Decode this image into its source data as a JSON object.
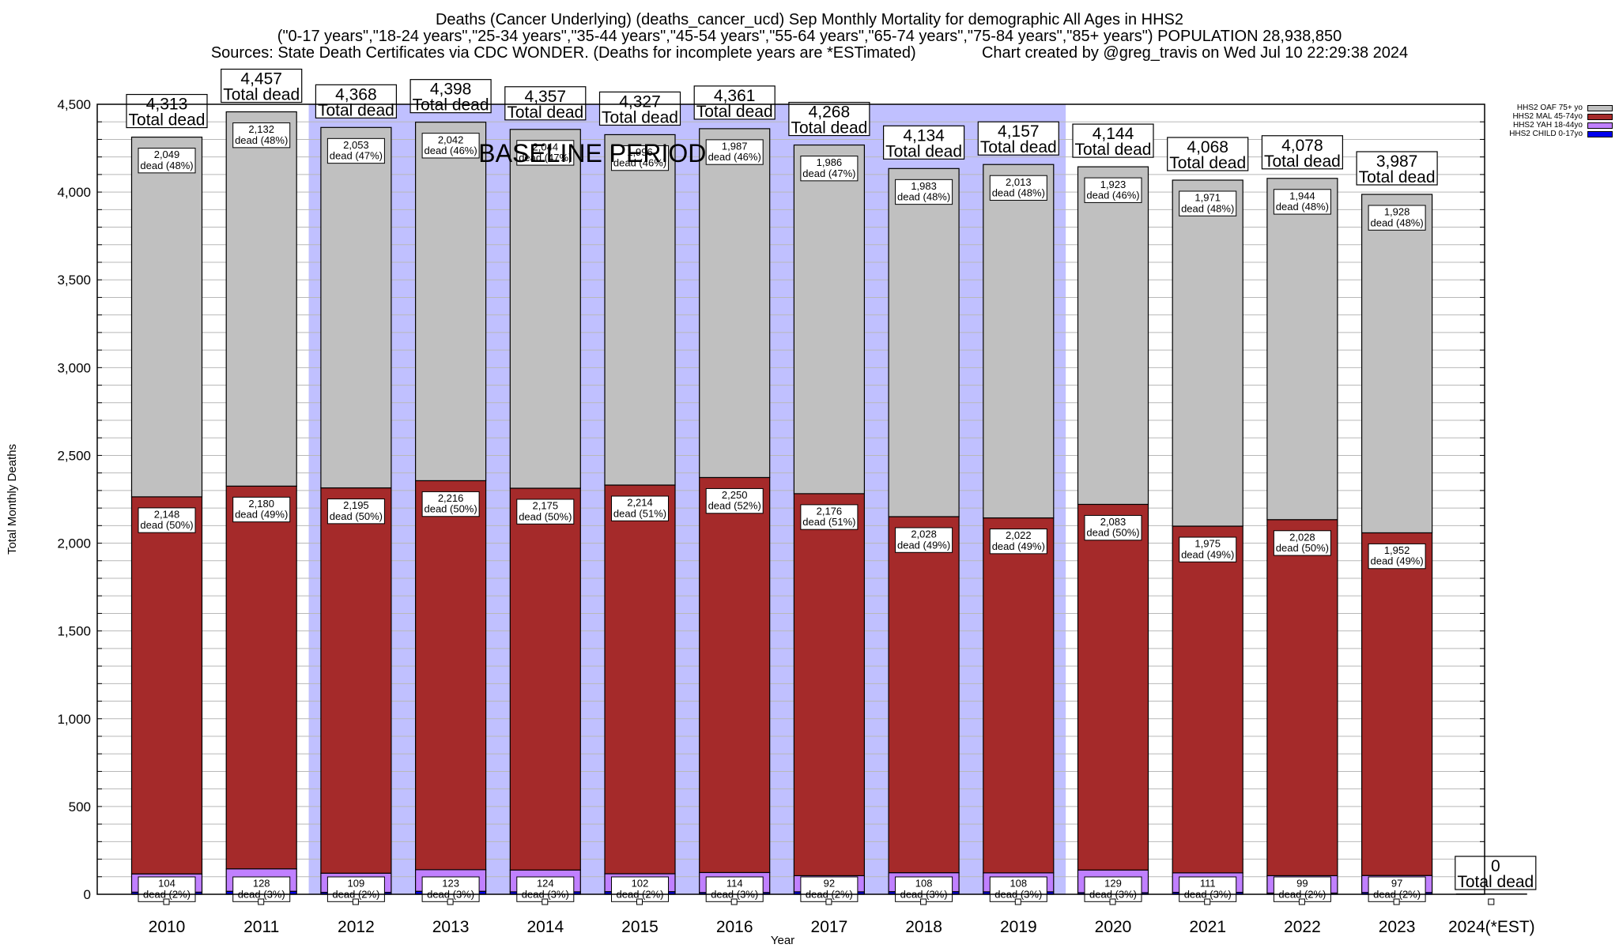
{
  "header": {
    "title_line1": "Deaths (Cancer Underlying) (deaths_cancer_ucd) Sep Monthly Mortality for demographic All Ages in HHS2",
    "title_line2": "(\"0-17 years\",\"18-24 years\",\"25-34 years\",\"35-44 years\",\"45-54 years\",\"55-64 years\",\"65-74 years\",\"75-84 years\",\"85+ years\") POPULATION 28,938,850",
    "title_line3": "Sources: State Death Certificates via CDC WONDER. (Deaths for incomplete years are *ESTimated)               Chart created by @greg_travis on Wed Jul 10 22:29:38 2024"
  },
  "chart_data": {
    "type": "bar",
    "stacked": true,
    "title": "Deaths (Cancer Underlying) (deaths_cancer_ucd) Sep Monthly Mortality for demographic All Ages in HHS2",
    "xlabel": "Year",
    "ylabel": "Total Monthly Deaths",
    "ylim": [
      0,
      4500
    ],
    "yticks": [
      0,
      500,
      1000,
      1500,
      2000,
      2500,
      3000,
      3500,
      4000,
      4500
    ],
    "ytick_labels": [
      "0",
      "500",
      "1,000",
      "1,500",
      "2,000",
      "2,500",
      "3,000",
      "3,500",
      "4,000",
      "4,500"
    ],
    "minor_grid_step": 100,
    "grid": true,
    "legend_position": "top-right",
    "categories": [
      "2010",
      "2011",
      "2012",
      "2013",
      "2014",
      "2015",
      "2016",
      "2017",
      "2018",
      "2019",
      "2020",
      "2021",
      "2022",
      "2023",
      "2024(*EST)"
    ],
    "series": [
      {
        "name": "HHS2 CHILD 0-17yo",
        "color": "#0000ee",
        "values": [
          12,
          17,
          11,
          17,
          14,
          15,
          10,
          14,
          15,
          14,
          9,
          11,
          7,
          10,
          0
        ]
      },
      {
        "name": "HHS2 YAH 18-44yo",
        "color": "#c080ff",
        "values": [
          104,
          128,
          109,
          123,
          124,
          102,
          114,
          92,
          108,
          108,
          129,
          111,
          99,
          97,
          0
        ],
        "labels": [
          "104\ndead (2%)",
          "128\ndead (3%)",
          "109\ndead (2%)",
          "123\ndead (3%)",
          "124\ndead (3%)",
          "102\ndead (2%)",
          "114\ndead (3%)",
          "92\ndead (2%)",
          "108\ndead (3%)",
          "108\ndead (3%)",
          "129\ndead (3%)",
          "111\ndead (3%)",
          "99\ndead (2%)",
          "97\ndead (2%)",
          ""
        ]
      },
      {
        "name": "HHS2 MAL 45-74yo",
        "color": "#a52a2a",
        "values": [
          2148,
          2180,
          2195,
          2216,
          2175,
          2214,
          2250,
          2176,
          2028,
          2022,
          2083,
          1975,
          2028,
          1952,
          0
        ],
        "labels": [
          "2,148\ndead (50%)",
          "2,180\ndead (49%)",
          "2,195\ndead (50%)",
          "2,216\ndead (50%)",
          "2,175\ndead (50%)",
          "2,214\ndead (51%)",
          "2,250\ndead (52%)",
          "2,176\ndead (51%)",
          "2,028\ndead (49%)",
          "2,022\ndead (49%)",
          "2,083\ndead (50%)",
          "1,975\ndead (49%)",
          "2,028\ndead (50%)",
          "1,952\ndead (49%)",
          ""
        ]
      },
      {
        "name": "HHS2 OAF 75+ yo",
        "color": "#c0c0c0",
        "values": [
          2049,
          2132,
          2053,
          2042,
          2044,
          1996,
          1987,
          1986,
          1983,
          2013,
          1923,
          1971,
          1944,
          1928,
          0
        ],
        "labels": [
          "2,049\ndead (48%)",
          "2,132\ndead (48%)",
          "2,053\ndead (47%)",
          "2,042\ndead (46%)",
          "2,044\ndead (47%)",
          "1,996\ndead (46%)",
          "1,987\ndead (46%)",
          "1,986\ndead (47%)",
          "1,983\ndead (48%)",
          "2,013\ndead (48%)",
          "1,923\ndead (46%)",
          "1,971\ndead (48%)",
          "1,944\ndead (48%)",
          "1,928\ndead (48%)",
          ""
        ]
      }
    ],
    "totals": [
      4313,
      4457,
      4368,
      4398,
      4357,
      4327,
      4361,
      4268,
      4134,
      4157,
      4144,
      4068,
      4078,
      3987,
      0
    ],
    "total_labels": [
      "4,313",
      "4,457",
      "4,368",
      "4,398",
      "4,357",
      "4,327",
      "4,361",
      "4,268",
      "4,134",
      "4,157",
      "4,144",
      "4,068",
      "4,078",
      "3,987",
      "0"
    ],
    "total_suffix": "Total dead",
    "baseline": {
      "label": "BASELINE PERIOD",
      "from": "2012",
      "to": "2019",
      "color": "#c0c0ff"
    }
  },
  "legend": [
    {
      "label": "HHS2 OAF 75+ yo",
      "color": "#c0c0c0"
    },
    {
      "label": "HHS2 MAL 45-74yo",
      "color": "#a52a2a"
    },
    {
      "label": "HHS2 YAH 18-44yo",
      "color": "#c080ff"
    },
    {
      "label": "HHS2 CHILD 0-17yo",
      "color": "#0000ee"
    }
  ]
}
